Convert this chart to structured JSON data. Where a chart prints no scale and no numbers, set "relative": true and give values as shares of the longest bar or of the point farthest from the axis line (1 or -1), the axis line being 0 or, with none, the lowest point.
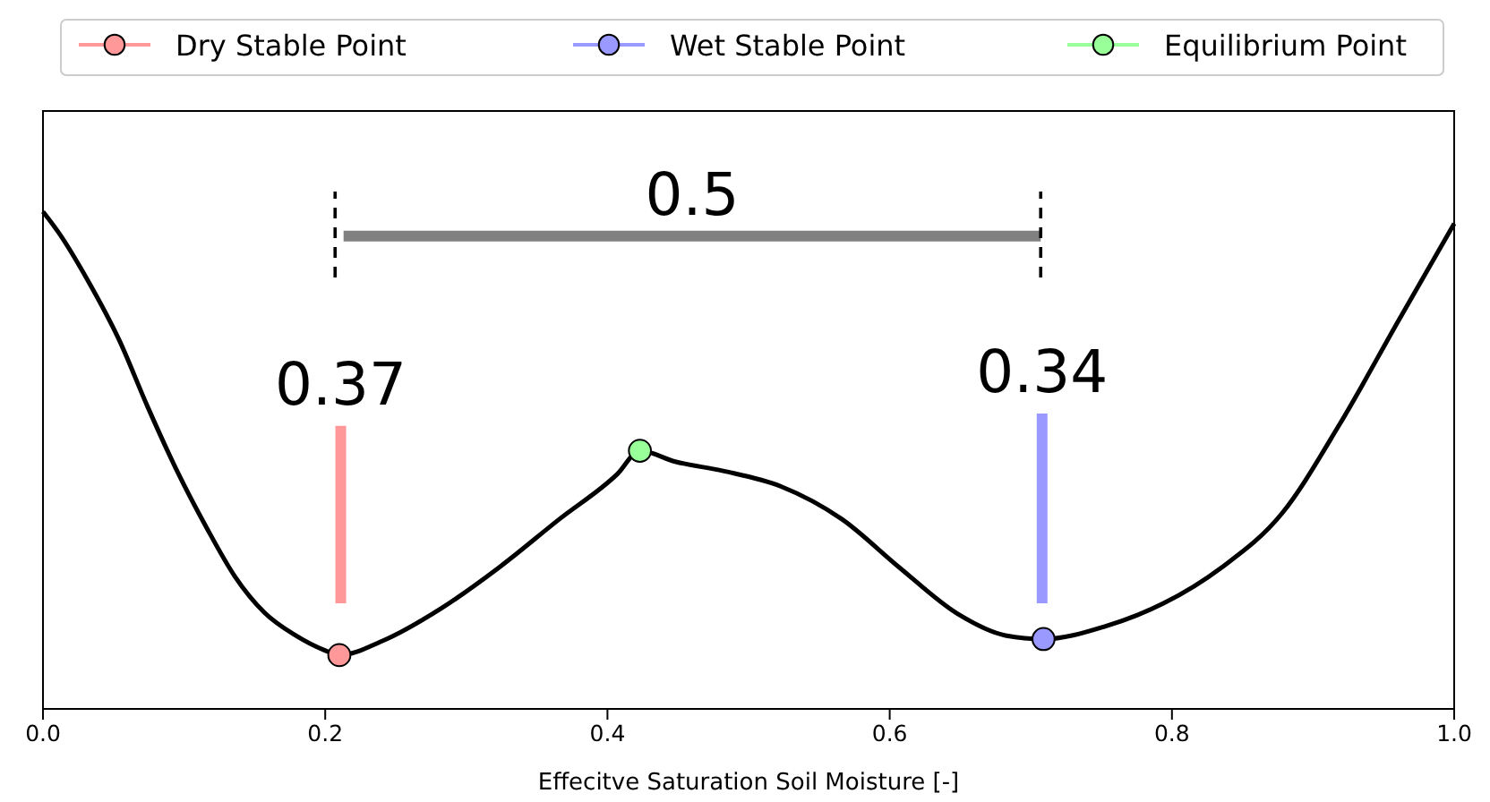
{
  "chart_data": {
    "type": "line",
    "relative": true,
    "xlabel": "Effecitve Saturation Soil Moisture [-]",
    "xlim": [
      0,
      1
    ],
    "xticks": [
      {
        "value": 0,
        "label": "0.0"
      },
      {
        "value": 0.2,
        "label": "0.2"
      },
      {
        "value": 0.4,
        "label": "0.4"
      },
      {
        "value": 0.6,
        "label": "0.6"
      },
      {
        "value": 0.8,
        "label": "0.8"
      },
      {
        "value": 1,
        "label": "1.0"
      }
    ],
    "legend": "top",
    "grid": false,
    "series": [
      {
        "color": "#000000",
        "x": [
          0,
          0.011,
          0.032,
          0.054,
          0.074,
          0.095,
          0.116,
          0.136,
          0.157,
          0.179,
          0.199,
          0.21,
          0.241,
          0.282,
          0.323,
          0.366,
          0.407,
          0.423,
          0.448,
          0.482,
          0.523,
          0.566,
          0.607,
          0.648,
          0.682,
          0.709,
          0.753,
          0.794,
          0.835,
          0.878,
          0.919,
          0.96,
          1
        ],
        "values": [
          0.961,
          0.921,
          0.827,
          0.713,
          0.585,
          0.46,
          0.35,
          0.256,
          0.186,
          0.142,
          0.114,
          0.104,
          0.132,
          0.194,
          0.273,
          0.367,
          0.454,
          0.499,
          0.478,
          0.46,
          0.43,
          0.367,
          0.273,
          0.184,
          0.142,
          0.135,
          0.16,
          0.204,
          0.273,
          0.378,
          0.551,
          0.748,
          0.938
        ]
      },
      {
        "type": "line",
        "color": "#ff9999",
        "x": [
          0.211,
          0.211
        ],
        "values": [
          0.204,
          0.547
        ]
      },
      {
        "type": "line",
        "color": "#9999ff",
        "x": [
          0.708,
          0.708
        ],
        "values": [
          0.204,
          0.571
        ]
      },
      {
        "type": "line",
        "color": "#808080",
        "x": [
          0.213,
          0.707
        ],
        "values": [
          0.914,
          0.914
        ]
      },
      {
        "type": "line",
        "color": "#000000",
        "line_style": "dashed",
        "x": [
          0.207,
          0.207
        ],
        "values": [
          0.834,
          1
        ]
      },
      {
        "type": "line",
        "color": "#000000",
        "line_style": "dashed",
        "x": [
          0.707,
          0.707
        ],
        "values": [
          0.834,
          1
        ]
      },
      {
        "type": "scatter",
        "name": "Dry Stable Point",
        "color": "#ff9999",
        "marker": "circle",
        "x": [
          0.21
        ],
        "values": [
          0.104
        ]
      },
      {
        "type": "scatter",
        "name": "Wet Stable Point",
        "color": "#9999ff",
        "marker": "circle",
        "x": [
          0.709
        ],
        "values": [
          0.135
        ]
      },
      {
        "type": "scatter",
        "name": "Equilibrium Point",
        "color": "#99ff99",
        "marker": "circle",
        "x": [
          0.423
        ],
        "values": [
          0.499
        ]
      }
    ],
    "annotations": [
      {
        "text": "0.37",
        "x": 0.211,
        "y": 0.547
      },
      {
        "text": "0.34",
        "x": 0.708,
        "y": 0.571
      },
      {
        "text": "0.5",
        "x": 0.46,
        "y": 0.914
      }
    ]
  }
}
